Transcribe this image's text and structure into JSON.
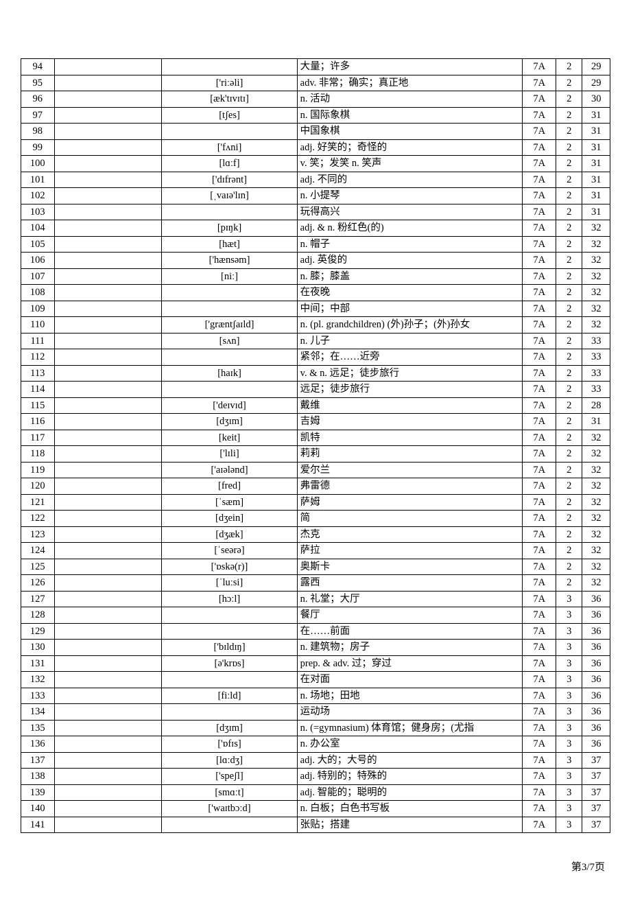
{
  "footer": "第3/7页",
  "rows": [
    {
      "num": "94",
      "word": "",
      "phonetic": "",
      "def": "大量；许多",
      "book": "7A",
      "unit": "2",
      "page": "29"
    },
    {
      "num": "95",
      "word": "",
      "phonetic": "['riːəli]",
      "def": "adv. 非常；确实；真正地",
      "book": "7A",
      "unit": "2",
      "page": "29"
    },
    {
      "num": "96",
      "word": "",
      "phonetic": "[æk'tɪvɪtɪ]",
      "def": "n. 活动",
      "book": "7A",
      "unit": "2",
      "page": "30"
    },
    {
      "num": "97",
      "word": "",
      "phonetic": "[tʃes]",
      "def": "n. 国际象棋",
      "book": "7A",
      "unit": "2",
      "page": "31"
    },
    {
      "num": "98",
      "word": "",
      "phonetic": "",
      "def": "中国象棋",
      "book": "7A",
      "unit": "2",
      "page": "31"
    },
    {
      "num": "99",
      "word": "",
      "phonetic": "['fʌni]",
      "def": "adj. 好笑的；奇怪的",
      "book": "7A",
      "unit": "2",
      "page": "31"
    },
    {
      "num": "100",
      "word": "",
      "phonetic": "[lɑːf]",
      "def": "v. 笑；发笑 n. 笑声",
      "book": "7A",
      "unit": "2",
      "page": "31"
    },
    {
      "num": "101",
      "word": "",
      "phonetic": "['dɪfrənt]",
      "def": "adj. 不同的",
      "book": "7A",
      "unit": "2",
      "page": "31"
    },
    {
      "num": "102",
      "word": "",
      "phonetic": "[ˌvaɪə'lɪn]",
      "def": "n. 小提琴",
      "book": "7A",
      "unit": "2",
      "page": "31"
    },
    {
      "num": "103",
      "word": "",
      "phonetic": "",
      "def": "玩得高兴",
      "book": "7A",
      "unit": "2",
      "page": "31"
    },
    {
      "num": "104",
      "word": "",
      "phonetic": "[pɪŋk]",
      "def": "adj. & n. 粉红色(的)",
      "book": "7A",
      "unit": "2",
      "page": "32"
    },
    {
      "num": "105",
      "word": "",
      "phonetic": "[hæt]",
      "def": "n. 帽子",
      "book": "7A",
      "unit": "2",
      "page": "32"
    },
    {
      "num": "106",
      "word": "",
      "phonetic": "['hænsəm]",
      "def": "adj. 英俊的",
      "book": "7A",
      "unit": "2",
      "page": "32"
    },
    {
      "num": "107",
      "word": "",
      "phonetic": "[niː]",
      "def": "n. 膝；膝盖",
      "book": "7A",
      "unit": "2",
      "page": "32"
    },
    {
      "num": "108",
      "word": "",
      "phonetic": "",
      "def": "在夜晚",
      "book": "7A",
      "unit": "2",
      "page": "32"
    },
    {
      "num": "109",
      "word": "",
      "phonetic": "",
      "def": "中间；中部",
      "book": "7A",
      "unit": "2",
      "page": "32"
    },
    {
      "num": "110",
      "word": "",
      "phonetic": "['græntʃaɪld]",
      "def": "n. (pl. grandchildren) (外)孙子；(外)孙女",
      "book": "7A",
      "unit": "2",
      "page": "32"
    },
    {
      "num": "111",
      "word": "",
      "phonetic": "[sʌn]",
      "def": "n. 儿子",
      "book": "7A",
      "unit": "2",
      "page": "33"
    },
    {
      "num": "112",
      "word": "",
      "phonetic": "",
      "def": "紧邻；在……近旁",
      "book": "7A",
      "unit": "2",
      "page": "33"
    },
    {
      "num": "113",
      "word": "",
      "phonetic": "[haɪk]",
      "def": "v. & n. 远足；徒步旅行",
      "book": "7A",
      "unit": "2",
      "page": "33"
    },
    {
      "num": "114",
      "word": "",
      "phonetic": "",
      "def": "远足；徒步旅行",
      "book": "7A",
      "unit": "2",
      "page": "33"
    },
    {
      "num": "115",
      "word": "",
      "phonetic": "['deɪvɪd]",
      "def": "戴维",
      "book": "7A",
      "unit": "2",
      "page": "28"
    },
    {
      "num": "116",
      "word": "",
      "phonetic": "[dʒɪm]",
      "def": "吉姆",
      "book": "7A",
      "unit": "2",
      "page": "31"
    },
    {
      "num": "117",
      "word": "",
      "phonetic": "[keit]",
      "def": "凯特",
      "book": "7A",
      "unit": "2",
      "page": "32"
    },
    {
      "num": "118",
      "word": "",
      "phonetic": "['lɪli]",
      "def": "莉莉",
      "book": "7A",
      "unit": "2",
      "page": "32"
    },
    {
      "num": "119",
      "word": "",
      "phonetic": "['aɪələnd]",
      "def": "爱尔兰",
      "book": "7A",
      "unit": "2",
      "page": "32"
    },
    {
      "num": "120",
      "word": "",
      "phonetic": "[fred]",
      "def": "弗雷德",
      "book": "7A",
      "unit": "2",
      "page": "32"
    },
    {
      "num": "121",
      "word": "",
      "phonetic": "[ˈsæm]",
      "def": "萨姆",
      "book": "7A",
      "unit": "2",
      "page": "32"
    },
    {
      "num": "122",
      "word": "",
      "phonetic": "[dʒein]",
      "def": "简",
      "book": "7A",
      "unit": "2",
      "page": "32"
    },
    {
      "num": "123",
      "word": "",
      "phonetic": "[dʒæk]",
      "def": "杰克",
      "book": "7A",
      "unit": "2",
      "page": "32"
    },
    {
      "num": "124",
      "word": "",
      "phonetic": "[ˈseərə]",
      "def": "萨拉",
      "book": "7A",
      "unit": "2",
      "page": "32"
    },
    {
      "num": "125",
      "word": "",
      "phonetic": "['ɒskə(r)]",
      "def": "奥斯卡",
      "book": "7A",
      "unit": "2",
      "page": "32"
    },
    {
      "num": "126",
      "word": "",
      "phonetic": "[ˈluːsi]",
      "def": "露西",
      "book": "7A",
      "unit": "2",
      "page": "32"
    },
    {
      "num": "127",
      "word": "",
      "phonetic": "[hɔːl]",
      "def": "n. 礼堂；大厅",
      "book": "7A",
      "unit": "3",
      "page": "36"
    },
    {
      "num": "128",
      "word": "",
      "phonetic": "",
      "def": "餐厅",
      "book": "7A",
      "unit": "3",
      "page": "36"
    },
    {
      "num": "129",
      "word": "",
      "phonetic": "",
      "def": "在……前面",
      "book": "7A",
      "unit": "3",
      "page": "36"
    },
    {
      "num": "130",
      "word": "",
      "phonetic": "['bɪldɪŋ]",
      "def": "n. 建筑物；房子",
      "book": "7A",
      "unit": "3",
      "page": "36"
    },
    {
      "num": "131",
      "word": "",
      "phonetic": "[ə'krɒs]",
      "def": "prep. & adv. 过；穿过",
      "book": "7A",
      "unit": "3",
      "page": "36"
    },
    {
      "num": "132",
      "word": "",
      "phonetic": "",
      "def": "在对面",
      "book": "7A",
      "unit": "3",
      "page": "36"
    },
    {
      "num": "133",
      "word": "",
      "phonetic": "[fiːld]",
      "def": "n. 场地；田地",
      "book": "7A",
      "unit": "3",
      "page": "36"
    },
    {
      "num": "134",
      "word": "",
      "phonetic": "",
      "def": "运动场",
      "book": "7A",
      "unit": "3",
      "page": "36"
    },
    {
      "num": "135",
      "word": "",
      "phonetic": "[dʒɪm]",
      "def": "n. (=gymnasium) 体育馆；健身房；(尤指",
      "book": "7A",
      "unit": "3",
      "page": "36"
    },
    {
      "num": "136",
      "word": "",
      "phonetic": "['ɒfɪs]",
      "def": "n. 办公室",
      "book": "7A",
      "unit": "3",
      "page": "36"
    },
    {
      "num": "137",
      "word": "",
      "phonetic": "[lɑːdʒ]",
      "def": "adj. 大的；大号的",
      "book": "7A",
      "unit": "3",
      "page": "37"
    },
    {
      "num": "138",
      "word": "",
      "phonetic": "['speʃl]",
      "def": "adj. 特别的；特殊的",
      "book": "7A",
      "unit": "3",
      "page": "37"
    },
    {
      "num": "139",
      "word": "",
      "phonetic": "[smɑːt]",
      "def": "adj. 智能的；聪明的",
      "book": "7A",
      "unit": "3",
      "page": "37"
    },
    {
      "num": "140",
      "word": "",
      "phonetic": "['waɪtbɔːd]",
      "def": "n. 白板；白色书写板",
      "book": "7A",
      "unit": "3",
      "page": "37"
    },
    {
      "num": "141",
      "word": "",
      "phonetic": "",
      "def": "张贴；搭建",
      "book": "7A",
      "unit": "3",
      "page": "37"
    }
  ]
}
